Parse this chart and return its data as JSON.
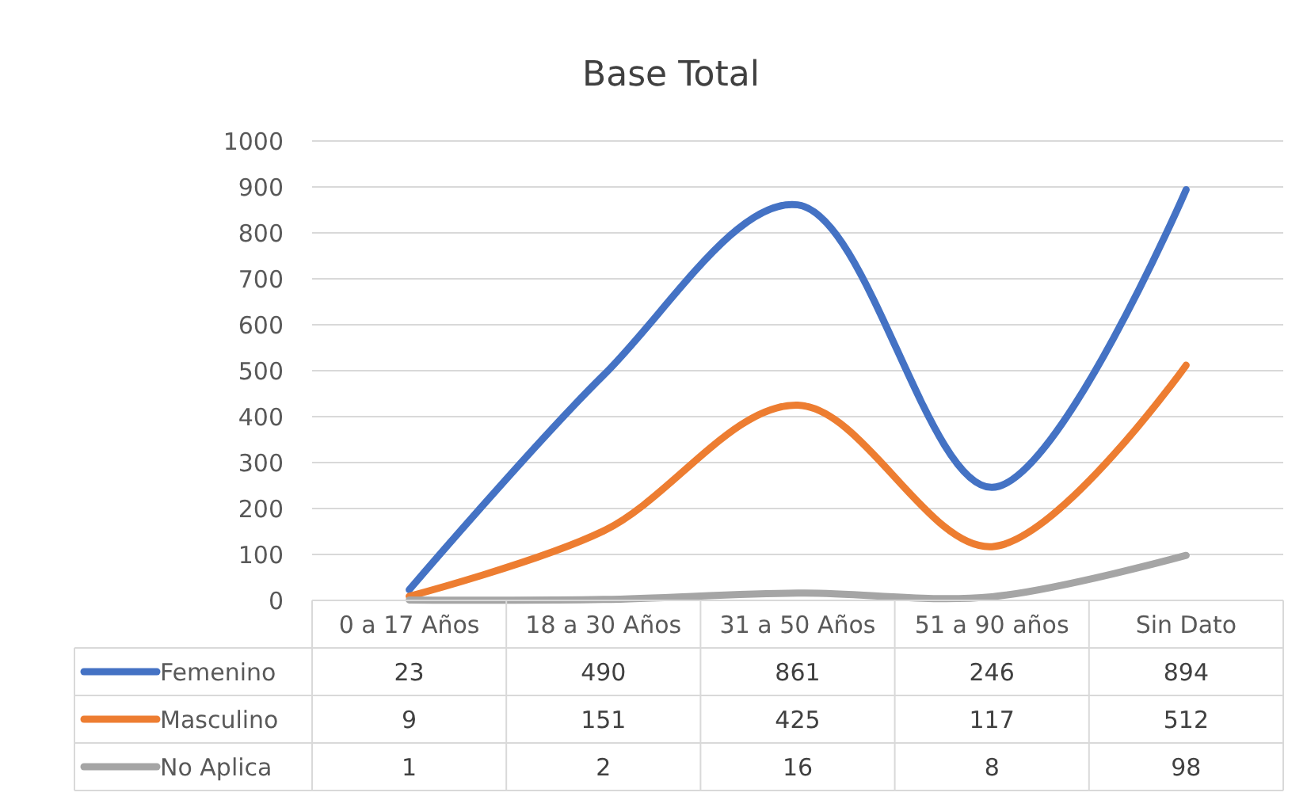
{
  "chart_data": {
    "type": "line",
    "title": "Base Total",
    "categories": [
      "0 a 17 Años",
      "18 a 30 Años",
      "31 a 50 Años",
      "51 a 90 años",
      "Sin Dato"
    ],
    "series": [
      {
        "name": "Femenino",
        "color": "#4472c4",
        "values": [
          23,
          490,
          861,
          246,
          894
        ]
      },
      {
        "name": "Masculino",
        "color": "#ed7d31",
        "values": [
          9,
          151,
          425,
          117,
          512
        ]
      },
      {
        "name": "No Aplica",
        "color": "#a5a5a5",
        "values": [
          1,
          2,
          16,
          8,
          98
        ]
      }
    ],
    "ylim": [
      0,
      1000
    ],
    "yticks": [
      0,
      100,
      200,
      300,
      400,
      500,
      600,
      700,
      800,
      900,
      1000
    ],
    "grid": "y",
    "legend": "bottom",
    "data_labels": true,
    "marker": "none",
    "line_style": "solid"
  }
}
